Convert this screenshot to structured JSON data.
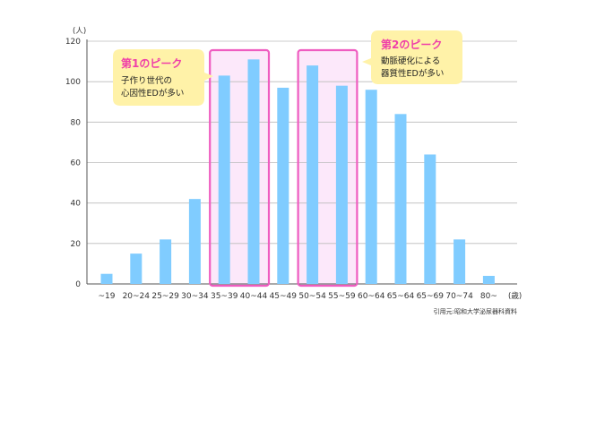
{
  "chart_data": {
    "type": "bar",
    "y_unit": "(人)",
    "x_unit": "(歳)",
    "categories": [
      "~19",
      "20~24",
      "25~29",
      "30~34",
      "35~39",
      "40~44",
      "45~49",
      "50~54",
      "55~59",
      "60~64",
      "65~64",
      "65~69",
      "70~74",
      "80~"
    ],
    "values": [
      5,
      15,
      22,
      42,
      103,
      111,
      97,
      108,
      98,
      96,
      84,
      64,
      22,
      4
    ],
    "ylim": [
      0,
      120
    ],
    "yticks": [
      0,
      20,
      40,
      60,
      80,
      100,
      120
    ],
    "grid": true,
    "bar_color": "#80ccff",
    "source": "引用元:昭和大学泌尿器科資料",
    "annotations": [
      {
        "title": "第1のピーク",
        "lines": [
          "子作り世代の",
          "心因性EDが多い"
        ],
        "highlight_categories": [
          "35~39",
          "40~44"
        ]
      },
      {
        "title": "第2のピーク",
        "lines": [
          "動脈硬化による",
          "器質性EDが多い"
        ],
        "highlight_categories": [
          "50~54",
          "55~59"
        ]
      }
    ]
  },
  "colors": {
    "highlight_border": "#ef5cc0",
    "highlight_fill": "#fce8fa",
    "callout_fill": "#fff2a8",
    "callout_title": "#ef3fa8",
    "grid": "#bbbbbb",
    "axis": "#555555"
  }
}
